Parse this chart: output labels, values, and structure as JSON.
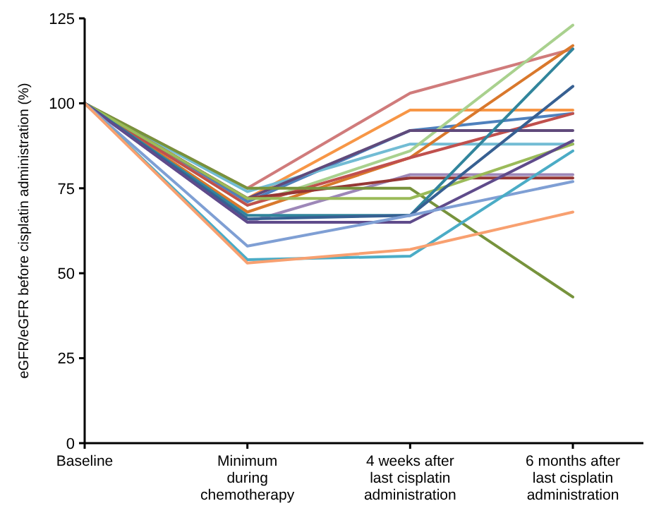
{
  "chart_data": {
    "type": "line",
    "ylabel": "eGFR/eGFR before cisplatin administration (%)",
    "categories": [
      "Baseline",
      "Minimum\nduring\nchemotherapy",
      "4 weeks after\nlast cisplatin\nadministration",
      "6 months after\nlast cisplatin\nadministration"
    ],
    "ylim": [
      0,
      125
    ],
    "yticks": [
      0,
      25,
      50,
      75,
      100,
      125
    ],
    "grid": false,
    "marker": "none",
    "line_style": "solid",
    "series": [
      {
        "color": "#d07b7b",
        "values": [
          100,
          75,
          103,
          116
        ]
      },
      {
        "color": "#f79646",
        "values": [
          100,
          72,
          98,
          98
        ]
      },
      {
        "color": "#4f81bd",
        "values": [
          100,
          71,
          92,
          97
        ]
      },
      {
        "color": "#72bcd4",
        "values": [
          100,
          74,
          88,
          88
        ]
      },
      {
        "color": "#a9d18e",
        "values": [
          100,
          70,
          86,
          123
        ]
      },
      {
        "color": "#d9782c",
        "values": [
          100,
          68,
          84,
          117
        ]
      },
      {
        "color": "#c0504d",
        "values": [
          100,
          70,
          84,
          97
        ]
      },
      {
        "color": "#604a7b",
        "values": [
          100,
          72,
          92,
          92
        ]
      },
      {
        "color": "#9d87b8",
        "values": [
          100,
          65,
          79,
          79
        ]
      },
      {
        "color": "#953735",
        "values": [
          100,
          72,
          78,
          78
        ]
      },
      {
        "color": "#77933c",
        "values": [
          100,
          75,
          75,
          43
        ]
      },
      {
        "color": "#9bbb59",
        "values": [
          100,
          72,
          72,
          88
        ]
      },
      {
        "color": "#31859c",
        "values": [
          100,
          67,
          67,
          116
        ]
      },
      {
        "color": "#376092",
        "values": [
          100,
          66,
          67,
          105
        ]
      },
      {
        "color": "#5f4b8b",
        "values": [
          100,
          65,
          65,
          89
        ]
      },
      {
        "color": "#7f9fd4",
        "values": [
          100,
          58,
          67,
          77
        ]
      },
      {
        "color": "#4bacc6",
        "values": [
          100,
          54,
          55,
          86
        ]
      },
      {
        "color": "#f8a070",
        "values": [
          100,
          53,
          57,
          68
        ]
      }
    ]
  }
}
